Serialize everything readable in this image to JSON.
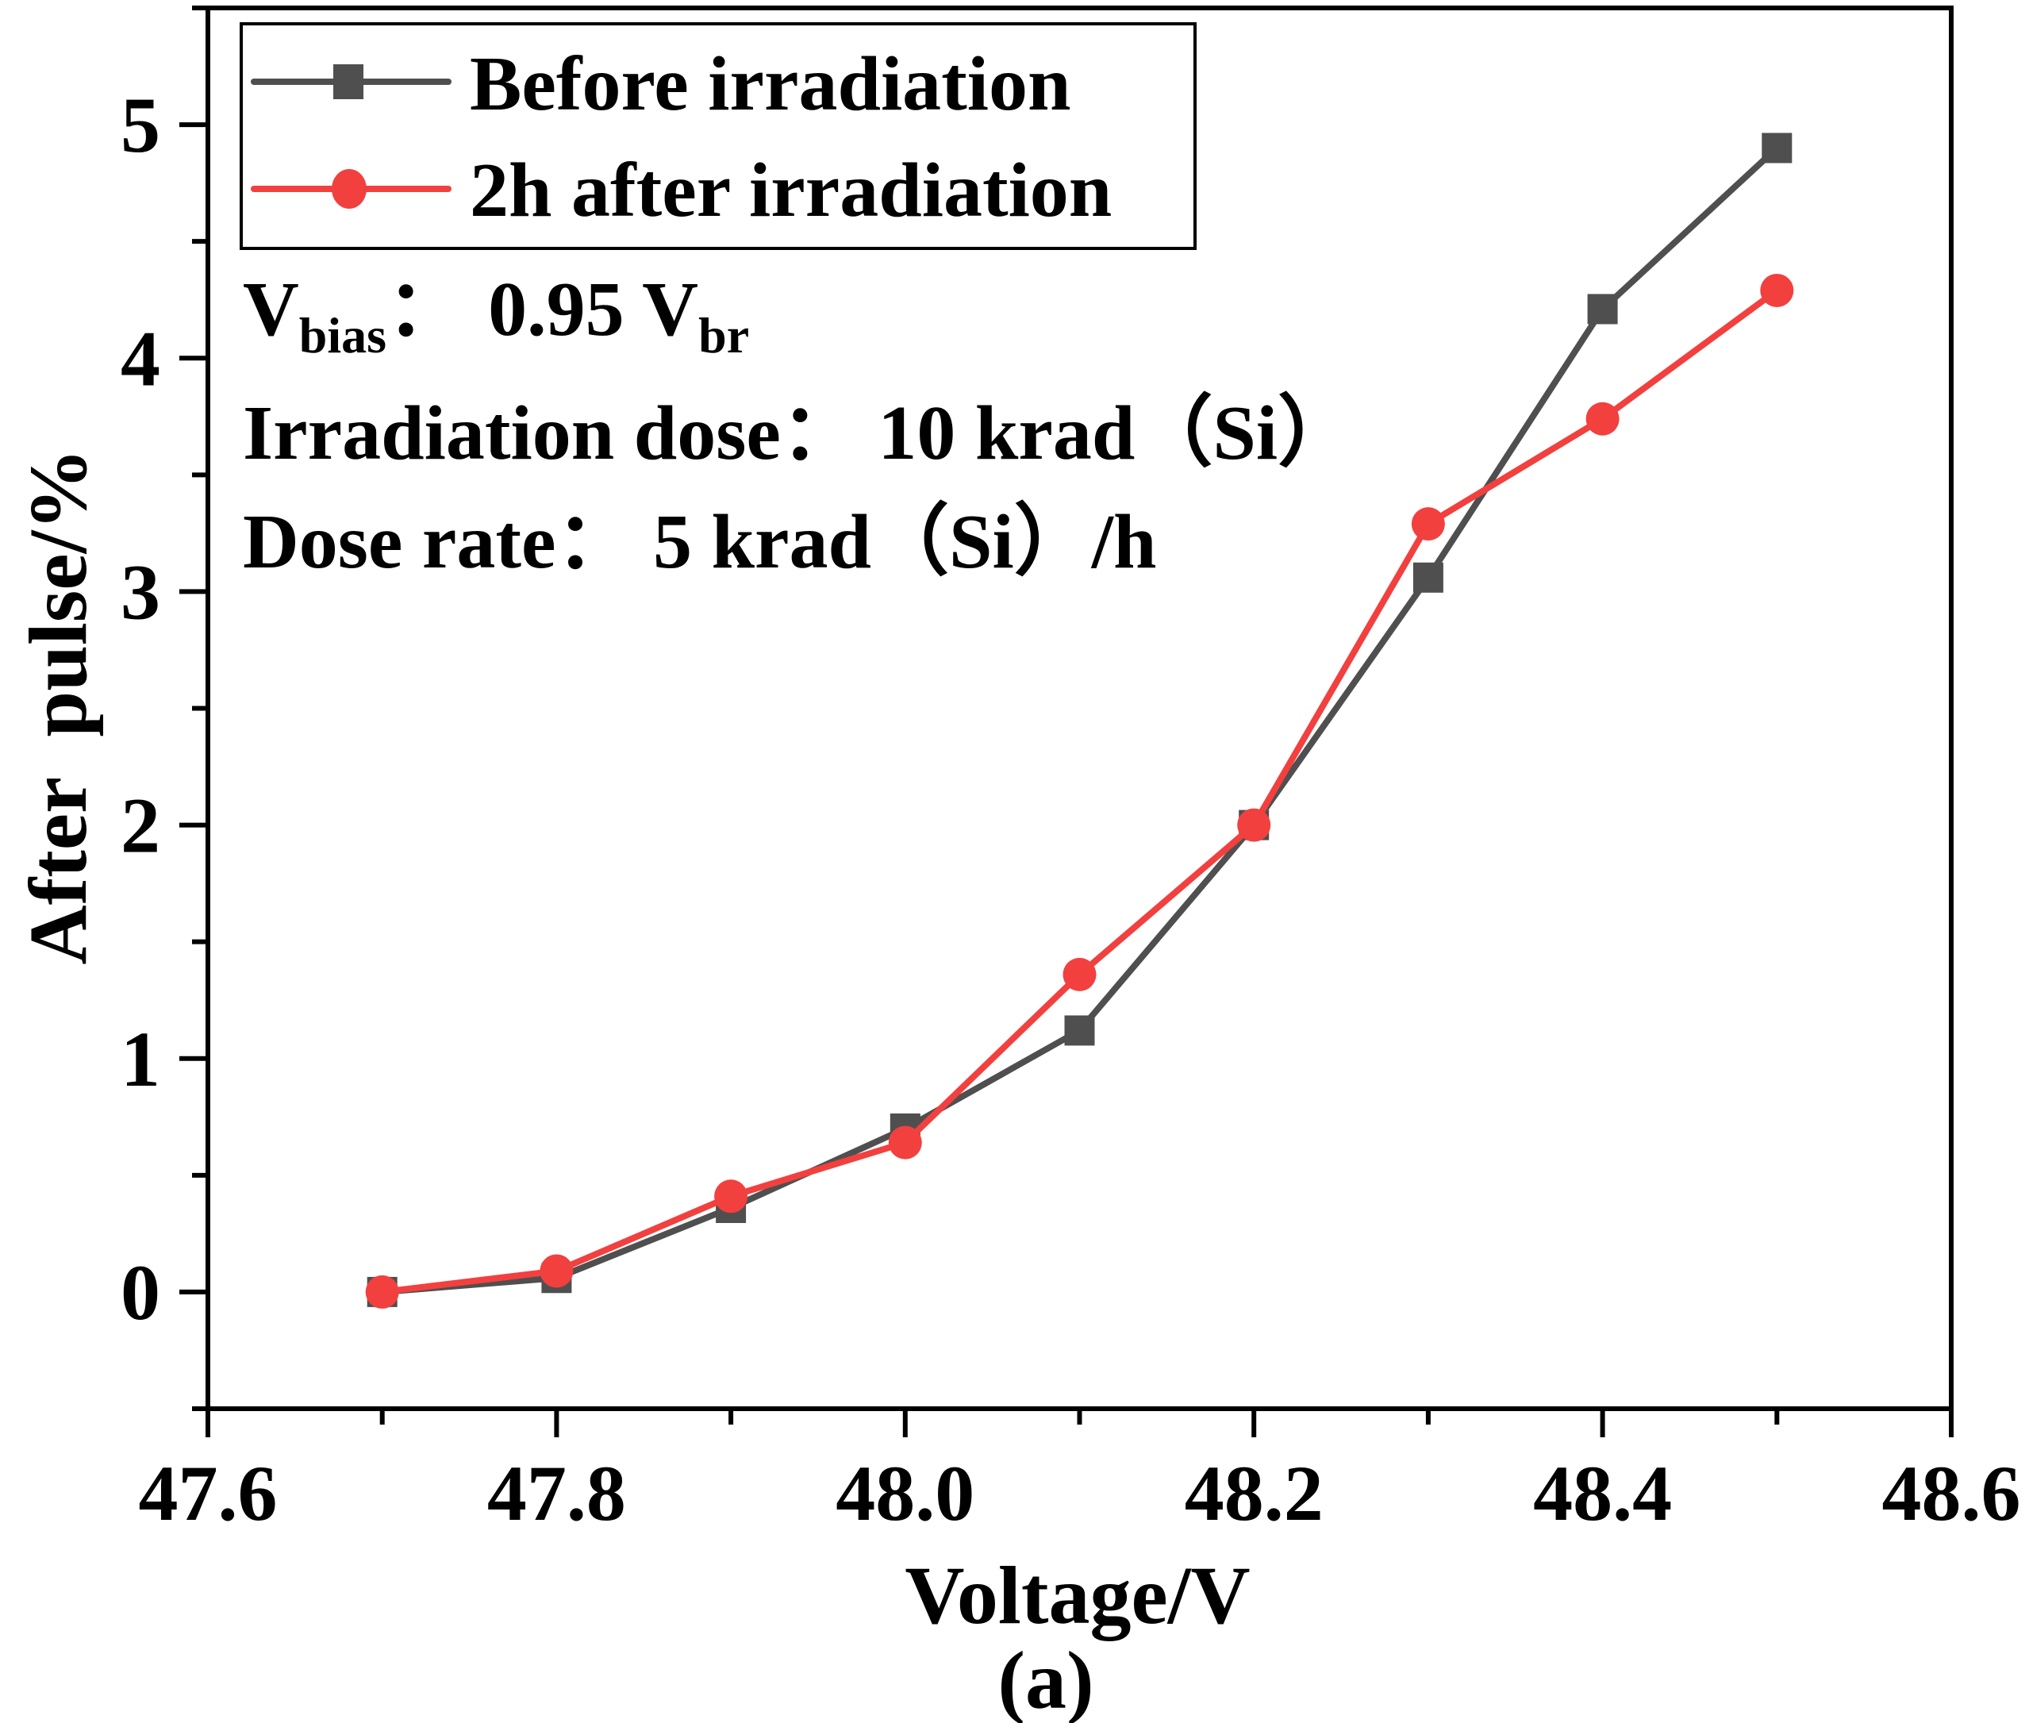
{
  "chart_data": {
    "type": "line",
    "title": "",
    "caption": "(a)",
    "xlabel": "Voltage/V",
    "ylabel": "After  pulse/%",
    "xlim": [
      47.6,
      48.6
    ],
    "ylim": [
      -0.5,
      5.5
    ],
    "xticks": [
      47.6,
      47.8,
      48.0,
      48.2,
      48.4,
      48.6
    ],
    "xtick_labels": [
      "47.6",
      "47.8",
      "48.0",
      "48.2",
      "48.4",
      "48.6"
    ],
    "xminor_step": 0.1,
    "yticks": [
      0,
      1,
      2,
      3,
      4,
      5
    ],
    "ytick_labels": [
      "0",
      "1",
      "2",
      "3",
      "4",
      "5"
    ],
    "yminor_step": 0.5,
    "grid": false,
    "legend_position": "top-left",
    "x": [
      47.7,
      47.8,
      47.9,
      48.0,
      48.1,
      48.2,
      48.3,
      48.4,
      48.5
    ],
    "series": [
      {
        "name": "Before irradiation",
        "marker": "square",
        "color": "#4f4f4f",
        "values": [
          0.0,
          0.06,
          0.36,
          0.7,
          1.12,
          2.0,
          3.06,
          4.21,
          4.9
        ]
      },
      {
        "name": "2h after irradiation",
        "marker": "circle",
        "color": "#f2403f",
        "values": [
          0.0,
          0.09,
          0.41,
          0.64,
          1.36,
          2.0,
          3.29,
          3.74,
          4.29
        ]
      }
    ],
    "annotations": {
      "vbias": {
        "main": "V",
        "sub": "bias",
        "sep": "：",
        "value": "0.95 V",
        "value_sub": "br"
      },
      "dose": "Irradiation dose：  10 krad（Si）",
      "rate": "Dose rate：  5 krad（Si）/h"
    }
  }
}
